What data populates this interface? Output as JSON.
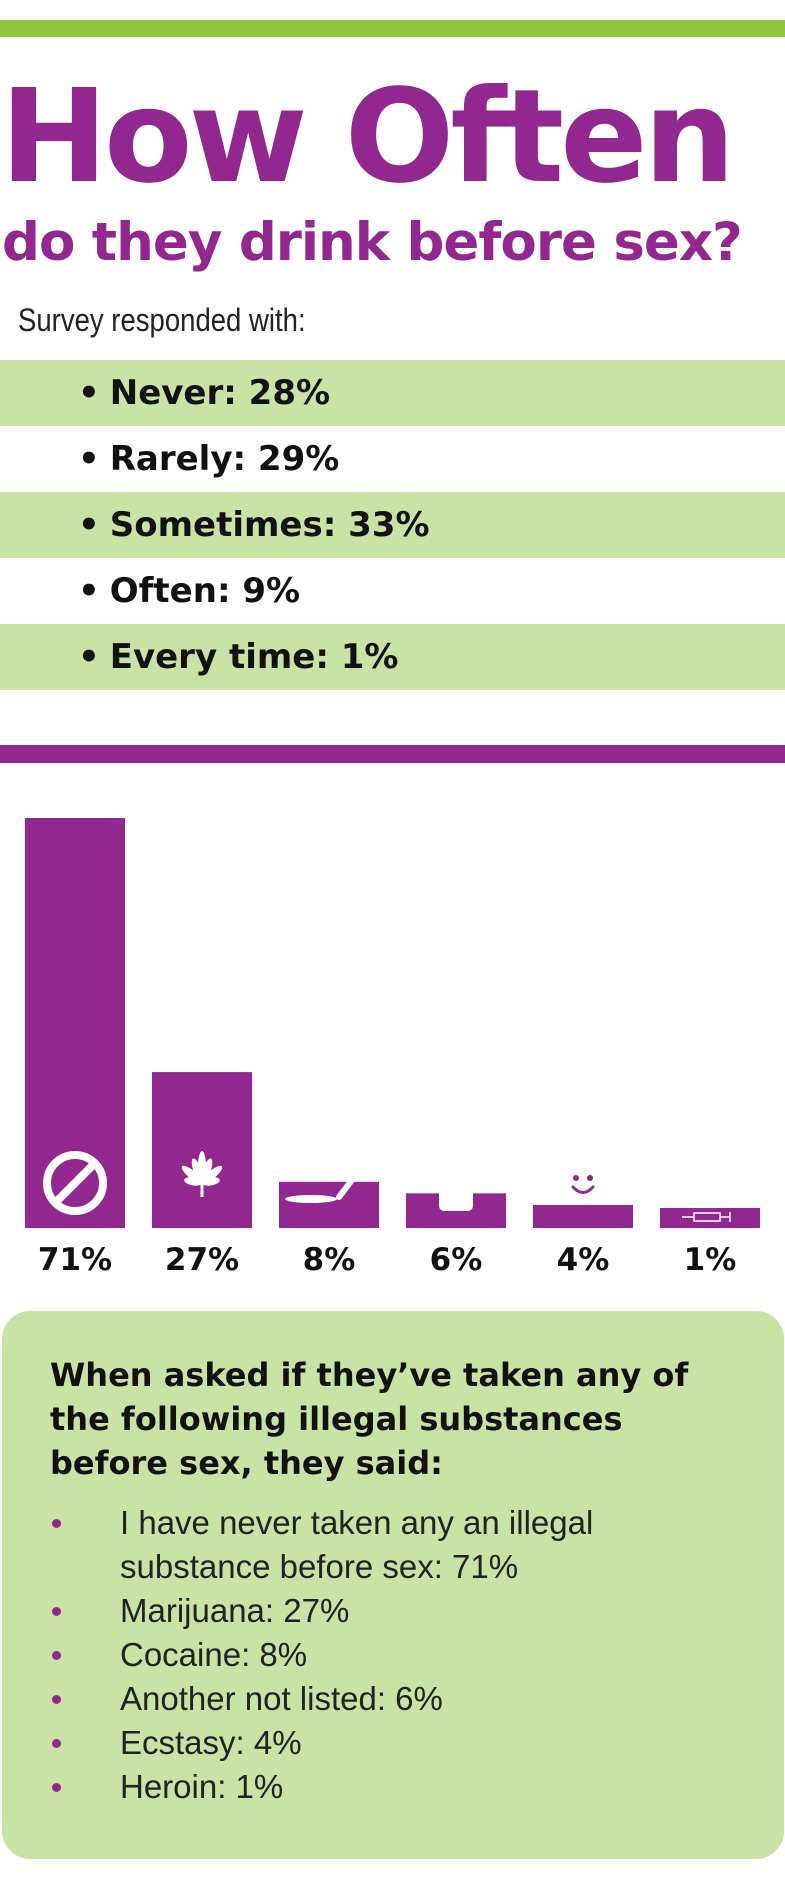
{
  "header": {
    "title": "How Often",
    "subtitle": "do they drink before sex?"
  },
  "survey": {
    "intro": "Survey responded with:",
    "responses": [
      {
        "label": "Never: 28%"
      },
      {
        "label": "Rarely: 29%"
      },
      {
        "label": "Sometimes: 33%"
      },
      {
        "label": "Often: 9%"
      },
      {
        "label": "Every time: 1%"
      }
    ]
  },
  "colors": {
    "purple": "#92278f",
    "green_rule": "#8dc63f",
    "green_fill": "#c9e3a5"
  },
  "chart_data": {
    "type": "bar",
    "categories": [
      "none",
      "marijuana",
      "cocaine",
      "other",
      "ecstasy",
      "heroin"
    ],
    "values": [
      71,
      27,
      8,
      6,
      4,
      1
    ],
    "value_labels": [
      "71%",
      "27%",
      "8%",
      "6%",
      "4%",
      "1%"
    ],
    "icons": [
      "no-symbol-icon",
      "marijuana-leaf-icon",
      "cocaine-line-icon",
      "pill-bottle-icon",
      "smiley-icon",
      "syringe-icon"
    ],
    "ylim": [
      0,
      71
    ],
    "grid": false,
    "legend": "none"
  },
  "substances": {
    "heading": "When asked if they’ve taken any of the following illegal substances before sex, they said:",
    "items": [
      {
        "label": "I have never taken any an illegal substance before sex: 71%"
      },
      {
        "label": "Marijuana: 27%"
      },
      {
        "label": "Cocaine: 8%"
      },
      {
        "label": "Another not listed: 6%"
      },
      {
        "label": "Ecstasy: 4%"
      },
      {
        "label": "Heroin: 1%"
      }
    ]
  }
}
